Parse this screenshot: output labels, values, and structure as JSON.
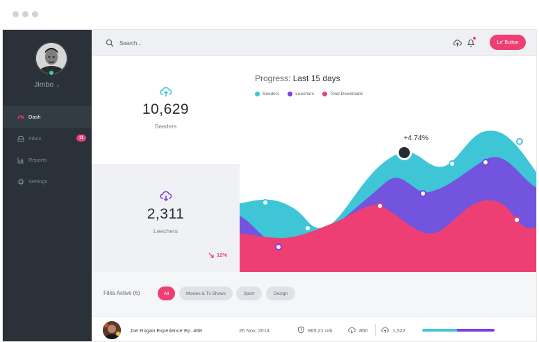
{
  "sidebar": {
    "username": "Jimbo",
    "items": [
      {
        "label": "Dash",
        "icon": "dashboard-icon",
        "active": true
      },
      {
        "label": "Inbox",
        "icon": "inbox-icon",
        "badge": "11"
      },
      {
        "label": "Reports",
        "icon": "bar-chart-icon"
      },
      {
        "label": "Settings",
        "icon": "gear-icon"
      }
    ]
  },
  "topbar": {
    "search_placeholder": "Search...",
    "button_label": "Le' Button"
  },
  "stats": {
    "seeders": {
      "value": "10,629",
      "label": "Seeders",
      "icon": "cloud-upload-icon"
    },
    "leechers": {
      "value": "2,311",
      "label": "Leechers",
      "icon": "cloud-download-icon",
      "trend": "12%"
    }
  },
  "chart_data": {
    "type": "area",
    "title_prefix": "Progress:",
    "title": "Last 15 days",
    "series": [
      {
        "name": "Seeders",
        "color": "#3fc6d6"
      },
      {
        "name": "Leechers",
        "color": "#7b3fe0"
      },
      {
        "name": "Total Downloads",
        "color": "#ee3f74"
      }
    ],
    "annotation": "+4.74%"
  },
  "files": {
    "title": "Files Active (6)",
    "filters": [
      {
        "label": "All",
        "active": true
      },
      {
        "label": "Movies & Tv Shows"
      },
      {
        "label": "Sport"
      },
      {
        "label": "Design"
      }
    ],
    "rows": [
      {
        "name": "Joe Rogan Experience Ep. 468",
        "date": "26 Nov, 2014",
        "size": "965,21 mb",
        "down": "860",
        "up": "1,522",
        "seed_ratio": 0.48,
        "leech_ratio": 0.52
      }
    ]
  },
  "colors": {
    "accent": "#ee3f74",
    "seeders": "#3fc6d6",
    "leechers": "#7b3fe0",
    "sidebar": "#2a3138"
  }
}
